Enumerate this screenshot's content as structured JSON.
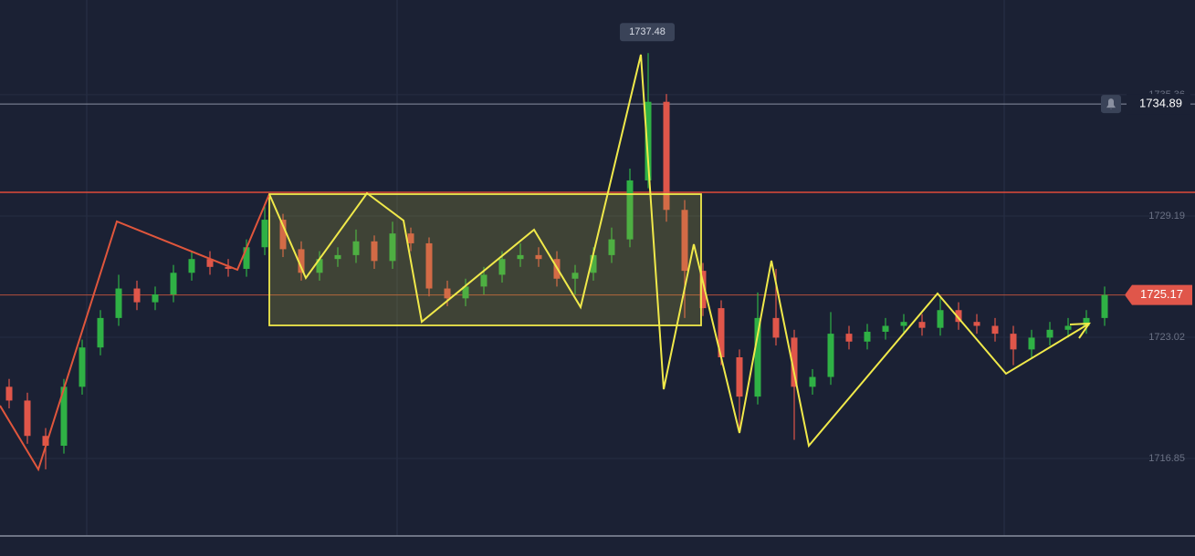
{
  "chart_data": {
    "type": "candlestick",
    "ylim": [
      1712.91,
      1740.18
    ],
    "yticks": [
      1716.85,
      1723.02,
      1729.19,
      1735.36
    ],
    "up_color": "#2fb145",
    "down_color": "#e0564a",
    "open": [
      1720.5,
      1719.8,
      1718.0,
      1717.5,
      1720.5,
      1722.5,
      1724.0,
      1725.5,
      1724.8,
      1725.2,
      1726.3,
      1727.0,
      1726.6,
      1726.5,
      1727.6,
      1729.0,
      1727.5,
      1726.3,
      1727.0,
      1727.2,
      1727.9,
      1726.9,
      1728.3,
      1727.8,
      1725.5,
      1725.0,
      1725.6,
      1726.2,
      1727.0,
      1727.2,
      1727.0,
      1726.0,
      1726.3,
      1727.2,
      1728.0,
      1731.0,
      1735.0,
      1729.5,
      1726.4,
      1724.5,
      1722.0,
      1720.0,
      1724.0,
      1723.0,
      1720.5,
      1721.0,
      1723.2,
      1722.8,
      1723.3,
      1723.6,
      1723.8,
      1723.5,
      1724.4,
      1723.8,
      1723.6,
      1723.2,
      1722.4,
      1723.0,
      1723.4,
      1723.6,
      1724.0
    ],
    "high": [
      1720.9,
      1720.2,
      1718.4,
      1720.9,
      1722.9,
      1724.4,
      1726.2,
      1725.9,
      1725.6,
      1726.7,
      1727.4,
      1727.4,
      1727.0,
      1728.0,
      1729.8,
      1729.3,
      1727.9,
      1727.4,
      1727.6,
      1728.5,
      1728.2,
      1728.9,
      1728.6,
      1728.1,
      1725.9,
      1726.0,
      1726.6,
      1727.4,
      1727.8,
      1727.6,
      1727.4,
      1726.7,
      1727.6,
      1728.6,
      1731.6,
      1737.48,
      1735.4,
      1730.0,
      1726.8,
      1724.9,
      1722.4,
      1725.3,
      1726.5,
      1723.4,
      1721.4,
      1724.3,
      1723.6,
      1723.7,
      1724.0,
      1724.2,
      1724.2,
      1725.0,
      1724.8,
      1724.2,
      1724.0,
      1723.6,
      1723.4,
      1723.8,
      1724.0,
      1724.4,
      1725.6
    ],
    "low": [
      1719.4,
      1717.6,
      1716.3,
      1717.1,
      1720.1,
      1722.1,
      1723.6,
      1724.4,
      1724.4,
      1724.8,
      1725.9,
      1726.2,
      1726.1,
      1726.1,
      1727.2,
      1727.1,
      1725.9,
      1725.9,
      1726.6,
      1726.8,
      1726.5,
      1726.5,
      1727.4,
      1725.1,
      1724.6,
      1724.6,
      1725.2,
      1725.8,
      1726.6,
      1726.6,
      1725.6,
      1725.2,
      1725.9,
      1726.8,
      1727.6,
      1730.6,
      1728.9,
      1724.0,
      1724.1,
      1721.6,
      1718.2,
      1719.6,
      1722.6,
      1717.8,
      1720.1,
      1720.6,
      1722.4,
      1722.4,
      1722.9,
      1723.2,
      1723.1,
      1723.1,
      1723.4,
      1723.2,
      1722.8,
      1721.6,
      1722.0,
      1722.6,
      1723.0,
      1723.2,
      1723.6
    ],
    "close": [
      1719.8,
      1718.0,
      1717.5,
      1720.5,
      1722.5,
      1724.0,
      1725.5,
      1724.8,
      1725.2,
      1726.3,
      1727.0,
      1726.6,
      1726.5,
      1727.6,
      1729.0,
      1727.5,
      1726.3,
      1727.0,
      1727.2,
      1727.9,
      1726.9,
      1728.3,
      1727.8,
      1725.5,
      1725.0,
      1725.6,
      1726.2,
      1727.0,
      1727.2,
      1727.0,
      1726.0,
      1726.3,
      1727.2,
      1728.0,
      1731.0,
      1735.0,
      1729.5,
      1726.4,
      1724.5,
      1722.0,
      1720.0,
      1724.0,
      1723.0,
      1720.5,
      1721.0,
      1723.2,
      1722.8,
      1723.3,
      1723.6,
      1723.8,
      1723.5,
      1724.4,
      1723.8,
      1723.6,
      1723.2,
      1722.4,
      1723.0,
      1723.4,
      1723.6,
      1724.0,
      1725.17
    ],
    "alert_price": 1734.89
  }
}
